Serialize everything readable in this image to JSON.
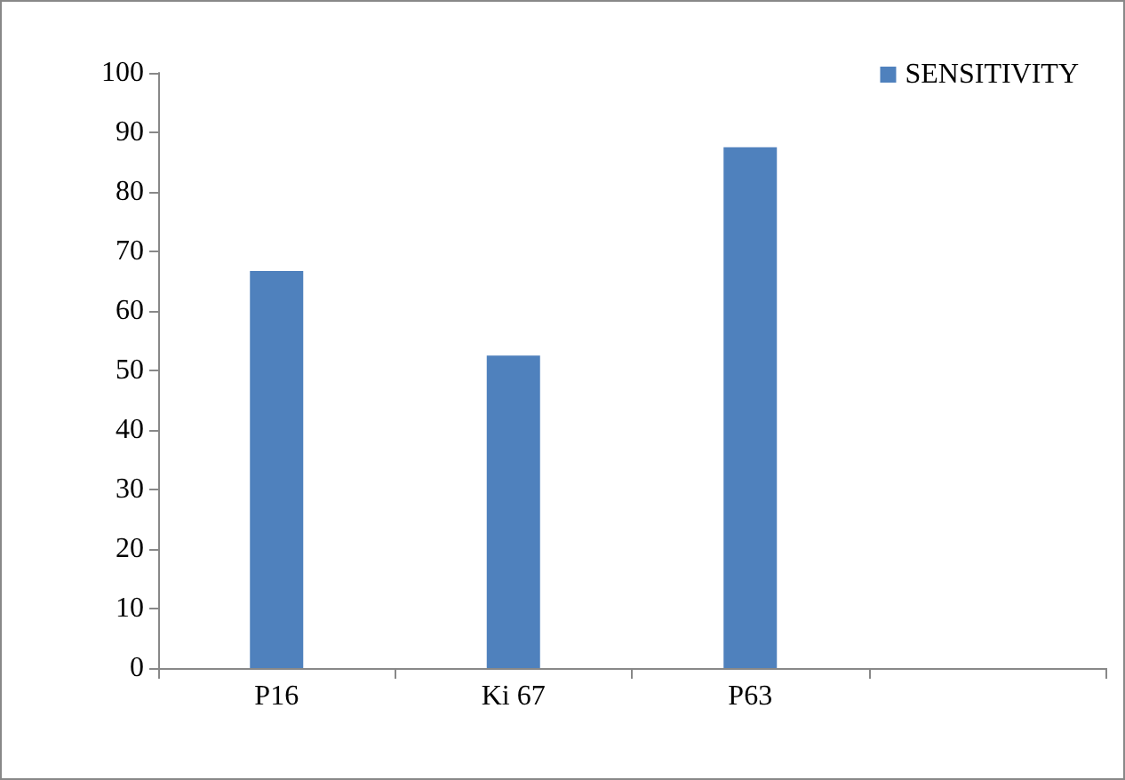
{
  "chart_data": {
    "type": "bar",
    "categories": [
      "P16",
      "Ki 67",
      "P63",
      null
    ],
    "series": [
      {
        "name": "SENSITIVITY",
        "color": "#4f81bd",
        "values": [
          66.7,
          52.5,
          87.5,
          null
        ]
      }
    ],
    "ylim": [
      0,
      100
    ],
    "yticks": [
      0,
      10,
      20,
      30,
      40,
      50,
      60,
      70,
      80,
      90,
      100
    ],
    "grid": false,
    "legend": "top right"
  }
}
